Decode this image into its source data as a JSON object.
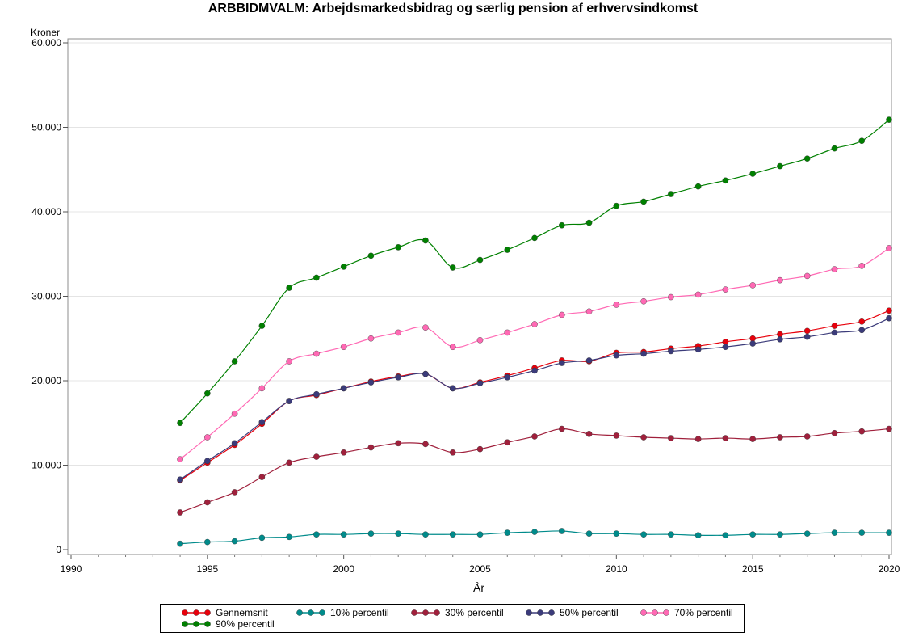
{
  "chart_data": {
    "type": "line",
    "title": "ARBBIDMVALM: Arbejdsmarkedsbidrag og særlig pension af erhvervsindkomst",
    "xlabel": "År",
    "ylabel": "Kroner",
    "xlim": [
      1990,
      2020
    ],
    "ylim": [
      0,
      60000
    ],
    "x_ticks": [
      "1990",
      "1995",
      "2000",
      "2005",
      "2010",
      "2015",
      "2020"
    ],
    "y_ticks": [
      "0",
      "10.000",
      "20.000",
      "30.000",
      "40.000",
      "50.000",
      "60.000"
    ],
    "grid": "horizontal",
    "legend_position": "bottom",
    "x": [
      1994,
      1995,
      1996,
      1997,
      1998,
      1999,
      2000,
      2001,
      2002,
      2003,
      2004,
      2005,
      2006,
      2007,
      2008,
      2009,
      2010,
      2011,
      2012,
      2013,
      2014,
      2015,
      2016,
      2017,
      2018,
      2019,
      2020
    ],
    "series": [
      {
        "name": "Gennemsnit",
        "color": "#e8000b",
        "values": [
          8200,
          10300,
          12400,
          14900,
          17600,
          18300,
          19100,
          19900,
          20500,
          20800,
          19100,
          19800,
          20600,
          21500,
          22400,
          22300,
          23300,
          23400,
          23800,
          24100,
          24600,
          25000,
          25500,
          25900,
          26500,
          27000,
          28300
        ]
      },
      {
        "name": "10% percentil",
        "color": "#008b8b",
        "values": [
          700,
          900,
          1000,
          1400,
          1500,
          1800,
          1800,
          1900,
          1900,
          1800,
          1800,
          1800,
          2000,
          2100,
          2200,
          1900,
          1900,
          1800,
          1800,
          1700,
          1700,
          1800,
          1800,
          1900,
          2000,
          2000,
          2000
        ]
      },
      {
        "name": "30% percentil",
        "color": "#a0203c",
        "values": [
          4400,
          5600,
          6800,
          8600,
          10300,
          11000,
          11500,
          12100,
          12600,
          12500,
          11500,
          11900,
          12700,
          13400,
          14300,
          13700,
          13500,
          13300,
          13200,
          13100,
          13200,
          13100,
          13300,
          13400,
          13800,
          14000,
          14300
        ]
      },
      {
        "name": "50% percentil",
        "color": "#3b3b7a",
        "values": [
          8300,
          10500,
          12600,
          15100,
          17600,
          18400,
          19100,
          19800,
          20400,
          20800,
          19100,
          19700,
          20400,
          21200,
          22100,
          22400,
          23000,
          23200,
          23500,
          23700,
          24000,
          24400,
          24900,
          25200,
          25700,
          26000,
          27400
        ]
      },
      {
        "name": "70% percentil",
        "color": "#ff69b4",
        "values": [
          10700,
          13300,
          16100,
          19100,
          22300,
          23200,
          24000,
          25000,
          25700,
          26300,
          24000,
          24800,
          25700,
          26700,
          27800,
          28200,
          29000,
          29400,
          29900,
          30200,
          30800,
          31300,
          31900,
          32400,
          33200,
          33600,
          35700
        ]
      },
      {
        "name": "90% percentil",
        "color": "#008000",
        "values": [
          15000,
          18500,
          22300,
          26500,
          31000,
          32200,
          33500,
          34800,
          35800,
          36600,
          33400,
          34300,
          35500,
          36900,
          38400,
          38700,
          40700,
          41200,
          42100,
          43000,
          43700,
          44500,
          45400,
          46300,
          47500,
          48400,
          50900
        ]
      }
    ]
  }
}
